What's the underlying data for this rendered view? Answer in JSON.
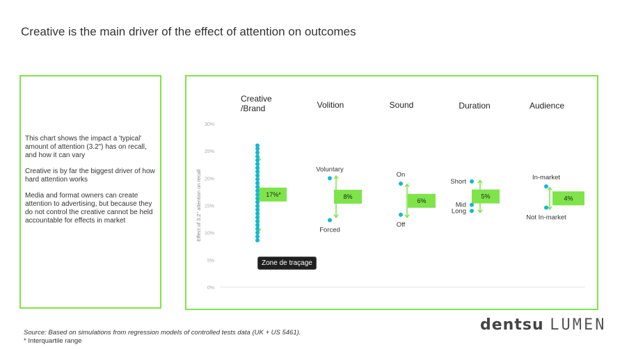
{
  "title": "Creative is the main driver of the effect of attention on outcomes",
  "sidebar": {
    "paragraphs": [
      "This chart shows the impact a 'typical' amount of attention (3.2\") has on recall, and how it can vary",
      "Creative is by far the biggest driver of how hard attention works",
      "Media and format owners can create attention to advertising, but because they do not control the creative cannot be held accountable for effects in market"
    ]
  },
  "tooltip": "Zone de traçage",
  "footer": {
    "source": "Source: Based on simulations from regression models of controlled tests data (UK + US 5461).",
    "note": "* Interquartile range"
  },
  "logo": {
    "brand": "dentsu",
    "product": "LUMEN"
  },
  "colors": {
    "accent": "#7ee44a",
    "dot": "#14b8d1",
    "arrow": "#7ee44a"
  },
  "chart_data": {
    "type": "scatter",
    "ylabel": "Effect of 3.2\" attention on recall",
    "ylim": [
      0,
      30
    ],
    "yticks": [
      "0%",
      "5%",
      "10%",
      "15%",
      "20%",
      "25%",
      "30%"
    ],
    "groups": [
      {
        "name": "Creative\n/Brand",
        "points": [
          8.6,
          9.3,
          10.0,
          10.7,
          11.4,
          12.1,
          12.8,
          13.5,
          14.2,
          14.9,
          15.6,
          16.3,
          17.0,
          17.7,
          18.4,
          19.1,
          19.8,
          20.5,
          21.2,
          21.9,
          22.6,
          23.3,
          24.0,
          24.7,
          25.4,
          26.0
        ],
        "point_labels": [],
        "range": [
          10.2,
          23.8
        ],
        "value_label": "17%*"
      },
      {
        "name": "Volition",
        "points": [
          20.0,
          12.3
        ],
        "point_labels": [
          "Voluntary",
          "Forced"
        ],
        "range": [
          12.8,
          20.4
        ],
        "value_label": "8%"
      },
      {
        "name": "Sound",
        "points": [
          19.0,
          13.3
        ],
        "point_labels": [
          "On",
          "Off"
        ],
        "range": [
          12.8,
          18.9
        ],
        "value_label": "6%"
      },
      {
        "name": "Duration",
        "points": [
          19.4,
          15.1,
          14.0
        ],
        "point_labels": [
          "Short",
          "Mid",
          "Long"
        ],
        "range": [
          13.7,
          19.6
        ],
        "value_label": "5%"
      },
      {
        "name": "Audience",
        "points": [
          18.5,
          14.6
        ],
        "point_labels": [
          "In-market",
          "Not In-market"
        ],
        "range": [
          14.3,
          18.3
        ],
        "value_label": "4%"
      }
    ]
  }
}
